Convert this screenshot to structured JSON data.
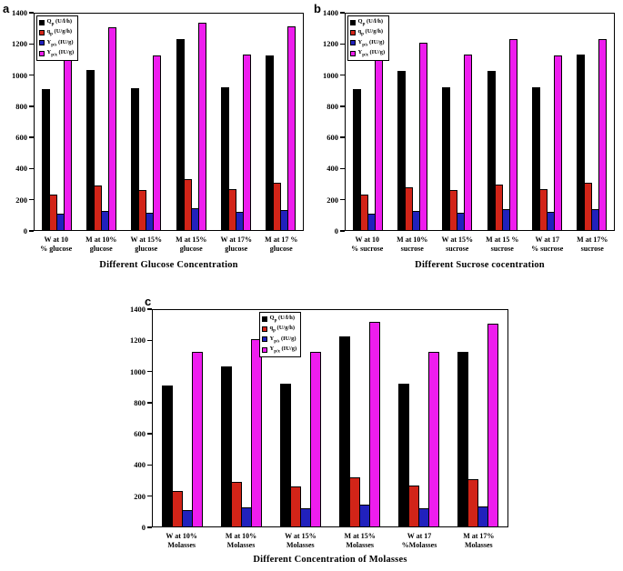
{
  "figure": {
    "background": "#ffffff",
    "axis_color": "#000000"
  },
  "chart_data": [
    {
      "type": "bar",
      "panel_label": "a",
      "xlabel": "Different Glucose Concentration",
      "ylabel": "",
      "ylim": [
        0,
        1400
      ],
      "yticks": [
        0,
        200,
        400,
        600,
        800,
        1000,
        1200,
        1400
      ],
      "grid": false,
      "legend_position": "top-left",
      "categories": [
        [
          "W at 10",
          "% glucose"
        ],
        [
          "M at 10%",
          "glucose"
        ],
        [
          "W at 15%",
          "glucose"
        ],
        [
          "M at 15%",
          "glucose"
        ],
        [
          "W at 17%",
          "glucose"
        ],
        [
          "M at 17 %",
          "glucose"
        ]
      ],
      "series": [
        {
          "key": "Qp",
          "name": "Qp (U/l/h)",
          "base": "Q",
          "sub": "p",
          "unit": " (U/l/h)",
          "color": "#000000",
          "values": [
            905,
            1025,
            910,
            1225,
            915,
            1120
          ]
        },
        {
          "key": "qp",
          "name": "qp (U/g/h)",
          "base": "q",
          "sub": "p",
          "unit": " (U/g/h)",
          "color": "#d22418",
          "values": [
            230,
            285,
            255,
            325,
            260,
            305
          ]
        },
        {
          "key": "Yps",
          "name": "Yp/s (IU/g)",
          "base": "Y",
          "sub": "p/s",
          "unit": " (IU/g)",
          "color": "#2121bd",
          "values": [
            105,
            120,
            110,
            140,
            115,
            130
          ]
        },
        {
          "key": "Ypx",
          "name": "Yp/x (IU/g)",
          "base": "Y",
          "sub": "p/x",
          "unit": " (IU/g)",
          "color": "#ee1dee",
          "values": [
            1120,
            1300,
            1120,
            1330,
            1125,
            1305
          ]
        }
      ]
    },
    {
      "type": "bar",
      "panel_label": "b",
      "xlabel": "Different Sucrose cocentration",
      "ylabel": "",
      "ylim": [
        0,
        1400
      ],
      "yticks": [
        0,
        200,
        400,
        600,
        800,
        1000,
        1200,
        1400
      ],
      "grid": false,
      "legend_position": "top-left",
      "categories": [
        [
          "W at 10",
          "% sucrose"
        ],
        [
          "M at 10%",
          "sucrose"
        ],
        [
          "W at 15%",
          "sucrose"
        ],
        [
          "M at 15 %",
          "sucrose"
        ],
        [
          "W at 17",
          "% sucrose"
        ],
        [
          "M at 17%",
          "sucrose"
        ]
      ],
      "series": [
        {
          "key": "Qp",
          "name": "Qp (U/l/h)",
          "base": "Q",
          "sub": "p",
          "unit": " (U/l/h)",
          "color": "#000000",
          "values": [
            905,
            1020,
            915,
            1020,
            915,
            1125
          ]
        },
        {
          "key": "qp",
          "name": "qp (U/g/h)",
          "base": "q",
          "sub": "p",
          "unit": " (U/g/h)",
          "color": "#d22418",
          "values": [
            225,
            275,
            255,
            290,
            265,
            305
          ]
        },
        {
          "key": "Yps",
          "name": "Yp/s (IU/g)",
          "base": "Y",
          "sub": "p/s",
          "unit": " (IU/g)",
          "color": "#2121bd",
          "values": [
            105,
            120,
            110,
            135,
            115,
            135
          ]
        },
        {
          "key": "Ypx",
          "name": "Yp/x (IU/g)",
          "base": "Y",
          "sub": "p/x",
          "unit": " (IU/g)",
          "color": "#ee1dee",
          "values": [
            1120,
            1200,
            1125,
            1225,
            1120,
            1225
          ]
        }
      ]
    },
    {
      "type": "bar",
      "panel_label": "c",
      "xlabel": "Different Concentration of Molasses",
      "ylabel": "",
      "ylim": [
        0,
        1400
      ],
      "yticks": [
        0,
        200,
        400,
        600,
        800,
        1000,
        1200,
        1400
      ],
      "grid": false,
      "legend_position": "top-center",
      "categories": [
        [
          "W at 10%",
          "Molasses"
        ],
        [
          "M at 10%",
          "Molasses"
        ],
        [
          "W at 15%",
          "Molasses"
        ],
        [
          "M at 15%",
          "Molasses"
        ],
        [
          "W at 17",
          "%Molasses"
        ],
        [
          "M at 17%",
          "Molasses"
        ]
      ],
      "series": [
        {
          "key": "Qp",
          "name": "Qp (U/l/h)",
          "base": "Q",
          "sub": "p",
          "unit": " (U/l/h)",
          "color": "#000000",
          "values": [
            905,
            1025,
            915,
            1220,
            915,
            1120
          ]
        },
        {
          "key": "qp",
          "name": "qp (U/g/h)",
          "base": "q",
          "sub": "p",
          "unit": " (U/g/h)",
          "color": "#d22418",
          "values": [
            225,
            285,
            255,
            315,
            265,
            305
          ]
        },
        {
          "key": "Yps",
          "name": "Yp/s (IU/g)",
          "base": "Y",
          "sub": "p/s",
          "unit": " (IU/g)",
          "color": "#2121bd",
          "values": [
            105,
            120,
            115,
            140,
            115,
            130
          ]
        },
        {
          "key": "Ypx",
          "name": "Yp/x (IU/g)",
          "base": "Y",
          "sub": "p/x",
          "unit": " (IU/g)",
          "color": "#ee1dee",
          "values": [
            1120,
            1200,
            1120,
            1310,
            1120,
            1300
          ]
        }
      ]
    }
  ]
}
